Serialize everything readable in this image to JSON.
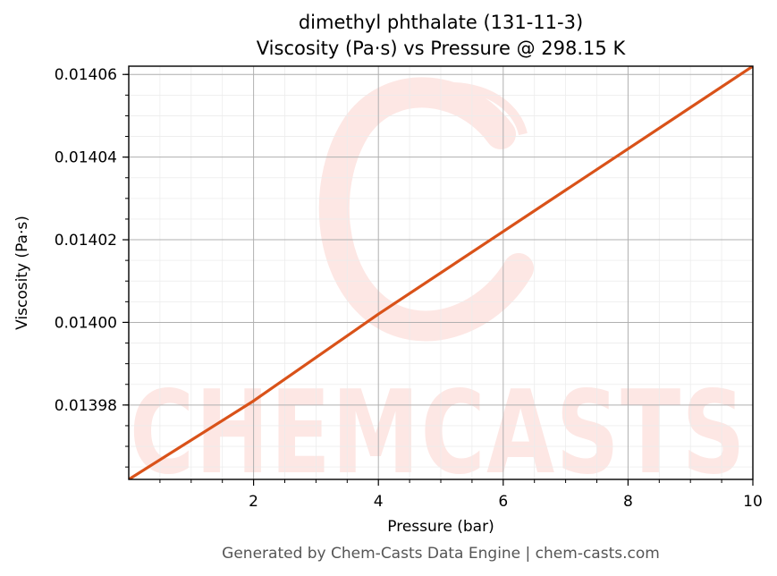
{
  "chart_data": {
    "type": "line",
    "title": "dimethyl phthalate (131-11-3)",
    "subtitle": "Viscosity (Pa·s) vs Pressure @ 298.15 K",
    "xlabel": "Pressure (bar)",
    "ylabel": "Viscosity (Pa·s)",
    "xlim": [
      0.0,
      10.0
    ],
    "ylim": [
      0.013962,
      0.014062
    ],
    "x_ticks": [
      2,
      4,
      6,
      8,
      10
    ],
    "x_tick_labels": [
      "2",
      "4",
      "6",
      "8",
      "10"
    ],
    "y_ticks": [
      0.01398,
      0.014,
      0.01402,
      0.01404,
      0.01406
    ],
    "y_tick_labels": [
      "0.01398",
      "0.01400",
      "0.01402",
      "0.01404",
      "0.01406"
    ],
    "grid": "major and minor",
    "series": [
      {
        "color": "#d95219",
        "x": [
          0.0,
          2.0,
          4.0,
          6.0,
          8.0,
          10.0
        ],
        "y": [
          0.013962,
          0.013981,
          0.014002,
          0.014022,
          0.014042,
          0.014062
        ]
      }
    ]
  },
  "watermark": {
    "text": "CHEMCASTS"
  },
  "footer": "Generated by Chem-Casts Data Engine | chem-casts.com"
}
